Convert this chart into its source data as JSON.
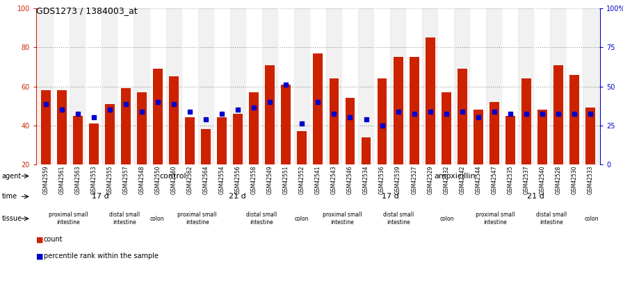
{
  "title": "GDS1273 / 1384003_at",
  "samples": [
    "GSM42559",
    "GSM42561",
    "GSM42563",
    "GSM42553",
    "GSM42555",
    "GSM42557",
    "GSM42548",
    "GSM42550",
    "GSM42560",
    "GSM42562",
    "GSM42564",
    "GSM42554",
    "GSM42556",
    "GSM42558",
    "GSM42549",
    "GSM42551",
    "GSM42552",
    "GSM42541",
    "GSM42543",
    "GSM42546",
    "GSM42534",
    "GSM42536",
    "GSM42539",
    "GSM42527",
    "GSM42529",
    "GSM42532",
    "GSM42542",
    "GSM42544",
    "GSM42547",
    "GSM42535",
    "GSM42537",
    "GSM42540",
    "GSM42528",
    "GSM42530",
    "GSM42533"
  ],
  "red_values": [
    58,
    58,
    45,
    41,
    51,
    59,
    57,
    69,
    65,
    44,
    38,
    44,
    46,
    57,
    71,
    61,
    37,
    77,
    64,
    54,
    34,
    64,
    75,
    75,
    85,
    57,
    69,
    48,
    52,
    45,
    64,
    48,
    71,
    66,
    49
  ],
  "blue_values": [
    51,
    48,
    46,
    44,
    48,
    51,
    47,
    52,
    51,
    47,
    43,
    46,
    48,
    49,
    52,
    61,
    41,
    52,
    46,
    44,
    43,
    40,
    47,
    46,
    47,
    46,
    47,
    44,
    47,
    46,
    46,
    46,
    46,
    46,
    46
  ],
  "ylim_left": [
    20,
    100
  ],
  "yticks_left": [
    20,
    40,
    60,
    80,
    100
  ],
  "ytick_labels_right": [
    "0",
    "25",
    "50",
    "75",
    "100%"
  ],
  "bar_color": "#cc2200",
  "blue_color": "#0000cc",
  "agent_control_color": "#aaddaa",
  "agent_amox_color": "#55cc55",
  "time_17_color": "#aaaadd",
  "time_21_color": "#7777bb",
  "tissue_proximal_color": "#cc9999",
  "tissue_distal_color": "#dd9999",
  "tissue_colon_color": "#cc6666",
  "time_groups": [
    {
      "start": 0,
      "end": 8,
      "label": "17 d",
      "color": "#aaaadd"
    },
    {
      "start": 8,
      "end": 17,
      "label": "21 d",
      "color": "#7777bb"
    },
    {
      "start": 17,
      "end": 27,
      "label": "17 d",
      "color": "#aaaadd"
    },
    {
      "start": 27,
      "end": 35,
      "label": "21 d",
      "color": "#7777bb"
    }
  ],
  "tissue_groups": [
    {
      "start": 0,
      "end": 4,
      "label": "proximal small\nintestine",
      "color": "#cc9999"
    },
    {
      "start": 4,
      "end": 7,
      "label": "distal small\nintestine",
      "color": "#dd9999"
    },
    {
      "start": 7,
      "end": 8,
      "label": "colon",
      "color": "#cc6666"
    },
    {
      "start": 8,
      "end": 12,
      "label": "proximal small\nintestine",
      "color": "#cc9999"
    },
    {
      "start": 12,
      "end": 16,
      "label": "distal small\nintestine",
      "color": "#dd9999"
    },
    {
      "start": 16,
      "end": 17,
      "label": "colon",
      "color": "#cc6666"
    },
    {
      "start": 17,
      "end": 21,
      "label": "proximal small\nintestine",
      "color": "#cc9999"
    },
    {
      "start": 21,
      "end": 24,
      "label": "distal small\nintestine",
      "color": "#dd9999"
    },
    {
      "start": 24,
      "end": 27,
      "label": "colon",
      "color": "#cc6666"
    },
    {
      "start": 27,
      "end": 30,
      "label": "proximal small\nintestine",
      "color": "#cc9999"
    },
    {
      "start": 30,
      "end": 34,
      "label": "distal small\nintestine",
      "color": "#dd9999"
    },
    {
      "start": 34,
      "end": 35,
      "label": "colon",
      "color": "#cc6666"
    }
  ]
}
